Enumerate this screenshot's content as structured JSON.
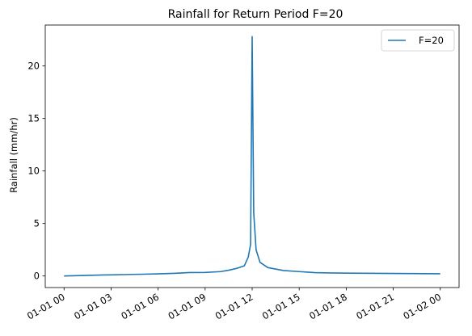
{
  "chart_data": {
    "type": "line",
    "title": "Rainfall for Return Period F=20",
    "xlabel": "",
    "ylabel": "Rainfall (mm/hr)",
    "x_unit": "hours since 01-01 00:00",
    "xlim": [
      -1.2,
      25.2
    ],
    "ylim": [
      -1.1,
      23.9
    ],
    "x_ticks": [
      0,
      3,
      6,
      9,
      12,
      15,
      18,
      21,
      24
    ],
    "x_tick_labels": [
      "01-01 00",
      "01-01 03",
      "01-01 06",
      "01-01 09",
      "01-01 12",
      "01-01 15",
      "01-01 18",
      "01-01 21",
      "01-02 00"
    ],
    "y_ticks": [
      0,
      5,
      10,
      15,
      20
    ],
    "y_tick_labels": [
      "0",
      "5",
      "10",
      "15",
      "20"
    ],
    "legend_position": "top-right",
    "grid": false,
    "series": [
      {
        "name": "F=20",
        "color": "#1f77b4",
        "x": [
          0,
          1,
          2,
          3,
          4,
          5,
          6,
          7,
          8,
          9,
          10,
          10.5,
          11,
          11.5,
          11.75,
          11.9,
          12,
          12.1,
          12.25,
          12.5,
          13,
          14,
          15,
          16,
          17,
          18,
          19,
          20,
          21,
          22,
          23,
          24
        ],
        "y": [
          0.0,
          0.04,
          0.08,
          0.11,
          0.14,
          0.17,
          0.2,
          0.25,
          0.33,
          0.34,
          0.42,
          0.55,
          0.72,
          0.97,
          1.8,
          3.0,
          22.8,
          6.0,
          2.5,
          1.3,
          0.8,
          0.52,
          0.42,
          0.32,
          0.29,
          0.27,
          0.26,
          0.25,
          0.24,
          0.23,
          0.22,
          0.21
        ]
      }
    ]
  }
}
